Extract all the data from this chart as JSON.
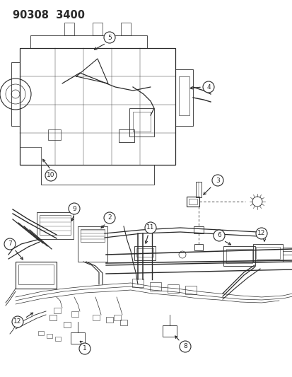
{
  "title": "90308  3400",
  "bg_color": "#ffffff",
  "fig_width": 4.14,
  "fig_height": 5.33,
  "dpi": 100,
  "line_color": "#2a2a2a",
  "title_fontsize": 10.5,
  "label_fontsize": 6.5
}
